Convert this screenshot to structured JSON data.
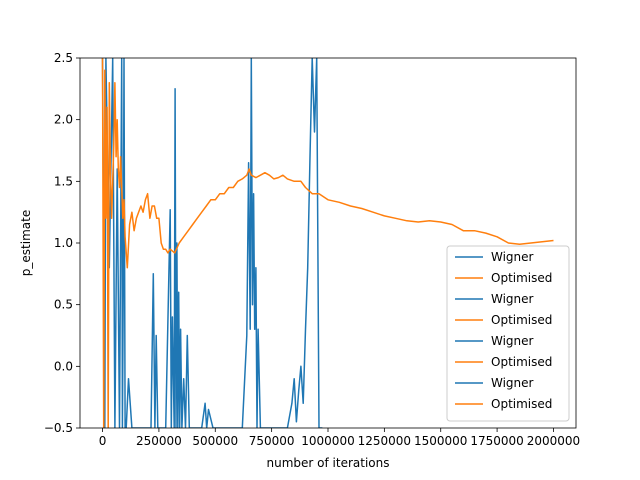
{
  "chart_data": {
    "type": "line",
    "title": "",
    "xlabel": "number of iterations",
    "ylabel": "p_estimate",
    "xlim": [
      -100000,
      2100000
    ],
    "ylim": [
      -0.5,
      2.5
    ],
    "grid": false,
    "legend_placement": "lower-right",
    "xticks": [
      0,
      250000,
      500000,
      750000,
      1000000,
      1250000,
      1500000,
      1750000,
      2000000
    ],
    "xtick_labels": [
      "0",
      "250000",
      "500000",
      "750000",
      "1000000",
      "1250000",
      "1500000",
      "1750000",
      "2000000"
    ],
    "yticks": [
      -0.5,
      0.0,
      0.5,
      1.0,
      1.5,
      2.0,
      2.5
    ],
    "ytick_labels": [
      "−0.5",
      "0.0",
      "0.5",
      "1.0",
      "1.5",
      "2.0",
      "2.5"
    ],
    "legend": [
      "Wigner",
      "Optimised",
      "Wigner",
      "Optimised",
      "Wigner",
      "Optimised",
      "Wigner",
      "Optimised"
    ],
    "colors": {
      "Wigner": "#1f77b4",
      "Optimised": "#ff7f0e"
    },
    "series": [
      {
        "name": "Wigner",
        "color": "#1f77b4",
        "x": [
          0,
          10000,
          15000,
          30000,
          45000,
          55000,
          65000,
          75000,
          85000,
          88000,
          92000,
          95000,
          100000,
          105000,
          115000,
          130000,
          140000,
          160000,
          180000,
          200000,
          215000,
          225000,
          232000,
          238000,
          245000,
          252000,
          260000,
          280000,
          300000,
          305000,
          310000,
          318000,
          322000,
          326000,
          330000,
          334000,
          338000,
          342000,
          346000,
          352000,
          360000,
          368000,
          376000,
          385000,
          395000,
          410000,
          425000,
          440000,
          455000,
          462000,
          470000,
          490000,
          510000,
          530000,
          560000,
          590000,
          620000,
          640000,
          648000,
          655000,
          660000,
          665000,
          670000,
          675000,
          680000,
          685000,
          690000,
          700000,
          720000,
          750000,
          780000,
          800000,
          820000,
          840000,
          850000,
          860000,
          870000,
          880000,
          890000,
          900000,
          910000,
          920000,
          930000,
          940000,
          950000,
          960000,
          975000
        ],
        "y": [
          2.5,
          -0.5,
          2.5,
          0.8,
          2.5,
          -0.5,
          1.6,
          -0.5,
          2.5,
          -0.5,
          0.7,
          2.5,
          -0.5,
          -0.5,
          -0.1,
          -0.5,
          -0.5,
          -0.5,
          -0.5,
          -0.5,
          -0.5,
          0.75,
          -0.5,
          0.25,
          -0.5,
          -0.5,
          -0.5,
          -0.5,
          1.27,
          -0.5,
          0.4,
          -0.5,
          2.25,
          -0.5,
          1.0,
          -0.5,
          0.6,
          -0.5,
          0.3,
          -0.5,
          -0.1,
          -0.5,
          0.25,
          -0.5,
          -0.5,
          -0.5,
          -0.5,
          -0.5,
          -0.3,
          -0.5,
          -0.35,
          -0.5,
          -0.5,
          -0.5,
          -0.5,
          -0.5,
          -0.5,
          0.25,
          1.65,
          0.3,
          2.5,
          0.5,
          1.4,
          0.3,
          0.8,
          -0.5,
          0.3,
          -0.5,
          -0.5,
          -0.5,
          -0.5,
          -0.5,
          -0.5,
          -0.3,
          -0.1,
          -0.45,
          -0.2,
          0.0,
          -0.3,
          0.3,
          0.8,
          1.7,
          2.5,
          1.9,
          2.5,
          -0.5,
          -0.5
        ]
      },
      {
        "name": "Optimised",
        "color": "#ff7f0e",
        "x": [
          0,
          5000,
          10000,
          15000,
          20000,
          25000,
          30000,
          35000,
          40000,
          45000,
          50000,
          55000,
          60000,
          65000,
          70000,
          75000,
          80000,
          85000,
          90000,
          95000,
          100000,
          110000,
          120000,
          130000,
          140000,
          150000,
          160000,
          170000,
          180000,
          190000,
          200000,
          210000,
          220000,
          230000,
          240000,
          250000,
          260000,
          270000,
          280000,
          290000,
          300000,
          320000,
          340000,
          360000,
          380000,
          400000,
          420000,
          440000,
          460000,
          480000,
          500000,
          520000,
          540000,
          560000,
          580000,
          600000,
          620000,
          640000,
          650000,
          660000,
          680000,
          700000,
          720000,
          740000,
          760000,
          780000,
          800000,
          820000,
          850000,
          880000,
          900000,
          930000,
          960000,
          1000000,
          1050000,
          1100000,
          1150000,
          1200000,
          1250000,
          1300000,
          1350000,
          1400000,
          1450000,
          1500000,
          1550000,
          1600000,
          1650000,
          1700000,
          1750000,
          1800000,
          1850000,
          1900000,
          1950000,
          2000000
        ],
        "y": [
          2.5,
          -0.5,
          2.4,
          1.2,
          2.1,
          -0.5,
          2.3,
          1.6,
          1.2,
          1.5,
          1.8,
          2.3,
          1.7,
          2.0,
          1.6,
          1.45,
          1.7,
          1.45,
          1.2,
          1.35,
          1.05,
          0.8,
          1.15,
          1.25,
          1.1,
          1.2,
          1.25,
          1.3,
          1.25,
          1.35,
          1.4,
          1.2,
          1.3,
          1.3,
          1.2,
          1.2,
          1.0,
          0.95,
          0.95,
          0.92,
          0.95,
          0.92,
          1.0,
          1.05,
          1.1,
          1.15,
          1.2,
          1.25,
          1.3,
          1.35,
          1.35,
          1.4,
          1.4,
          1.45,
          1.45,
          1.5,
          1.52,
          1.55,
          1.6,
          1.55,
          1.53,
          1.55,
          1.57,
          1.55,
          1.52,
          1.53,
          1.55,
          1.52,
          1.5,
          1.5,
          1.45,
          1.4,
          1.4,
          1.35,
          1.33,
          1.3,
          1.28,
          1.25,
          1.22,
          1.2,
          1.18,
          1.17,
          1.18,
          1.17,
          1.15,
          1.1,
          1.1,
          1.08,
          1.05,
          1.0,
          0.99,
          1.0,
          1.01,
          1.02
        ]
      }
    ]
  }
}
